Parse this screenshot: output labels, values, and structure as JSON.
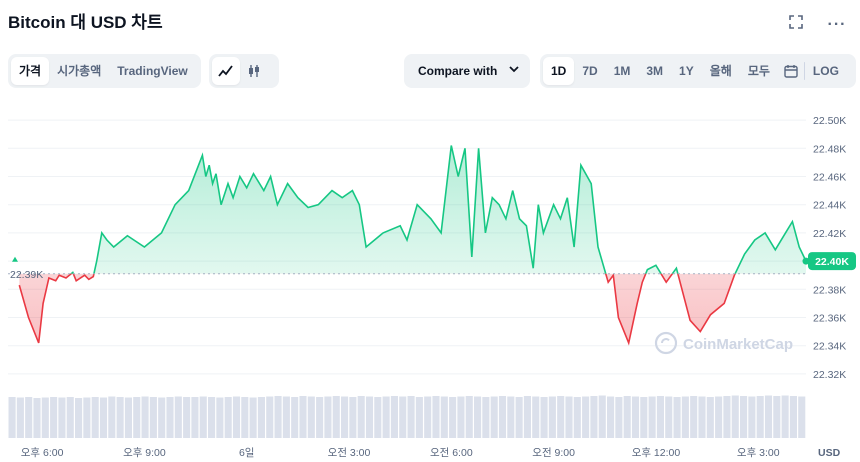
{
  "header": {
    "title": "Bitcoin 대 USD 차트"
  },
  "tabs": [
    "가격",
    "시가총액",
    "TradingView"
  ],
  "compare_label": "Compare with",
  "ranges": [
    "1D",
    "7D",
    "1M",
    "3M",
    "1Y",
    "올해",
    "모두"
  ],
  "log_label": "LOG",
  "watermark": "CoinMarketCap",
  "colors": {
    "up": "#16c784",
    "down": "#ea3943",
    "current_badge": "#16c784"
  },
  "chart_data": {
    "type": "area",
    "currency_label": "USD",
    "ylim": [
      22.31,
      22.51
    ],
    "y_ticks": [
      "22.32K",
      "22.34K",
      "22.36K",
      "22.38K",
      "22.40K",
      "22.42K",
      "22.44K",
      "22.46K",
      "22.48K",
      "22.50K"
    ],
    "y_tick_values": [
      22.32,
      22.34,
      22.36,
      22.38,
      22.4,
      22.42,
      22.44,
      22.46,
      22.48,
      22.5
    ],
    "baseline": {
      "value": 22.391,
      "label": "22.39K"
    },
    "current": {
      "value": 22.4,
      "label": "22.40K"
    },
    "x_ticks": [
      "오후 6:00",
      "오후 9:00",
      "6일",
      "오전 3:00",
      "오전 6:00",
      "오전 9:00",
      "오후 12:00",
      "오후 3:00"
    ],
    "x_tick_values": [
      1.0,
      4.0,
      7.0,
      10.0,
      13.0,
      16.0,
      19.0,
      22.0
    ],
    "xlim": [
      0.0,
      23.4
    ],
    "series": [
      {
        "unit": "K USD",
        "x": [
          0.33,
          0.6,
          0.9,
          1.03,
          1.2,
          1.4,
          1.5,
          1.7,
          1.9,
          2.0,
          2.25,
          2.37,
          2.5,
          2.6,
          2.75,
          2.9,
          3.1,
          3.5,
          4.0,
          4.5,
          4.9,
          5.3,
          5.7,
          5.8,
          5.9,
          6.0,
          6.1,
          6.25,
          6.45,
          6.6,
          6.8,
          7.0,
          7.2,
          7.5,
          7.7,
          7.9,
          8.2,
          8.5,
          8.8,
          9.1,
          9.5,
          9.8,
          10.1,
          10.3,
          10.5,
          11.0,
          11.5,
          11.7,
          12.0,
          12.4,
          12.7,
          13.0,
          13.2,
          13.4,
          13.6,
          13.8,
          14.0,
          14.2,
          14.4,
          14.6,
          14.8,
          15.0,
          15.2,
          15.4,
          15.55,
          15.7,
          16.0,
          16.2,
          16.4,
          16.6,
          16.8,
          17.1,
          17.3,
          17.6,
          17.75,
          17.9,
          18.2,
          18.45,
          18.6,
          18.75,
          19.0,
          19.3,
          19.6,
          20.0,
          20.3,
          20.6,
          21.0,
          21.3,
          21.6,
          21.9,
          22.2,
          22.5,
          22.8,
          23.0,
          23.2,
          23.4
        ],
        "y": [
          22.383,
          22.36,
          22.342,
          22.37,
          22.388,
          22.386,
          22.39,
          22.388,
          22.392,
          22.386,
          22.39,
          22.387,
          22.389,
          22.4,
          22.42,
          22.415,
          22.41,
          22.418,
          22.41,
          22.42,
          22.44,
          22.45,
          22.475,
          22.46,
          22.468,
          22.455,
          22.462,
          22.44,
          22.455,
          22.445,
          22.46,
          22.452,
          22.462,
          22.45,
          22.46,
          22.44,
          22.455,
          22.445,
          22.438,
          22.44,
          22.45,
          22.445,
          22.45,
          22.44,
          22.41,
          22.42,
          22.425,
          22.415,
          22.44,
          22.43,
          22.42,
          22.482,
          22.46,
          22.48,
          22.403,
          22.48,
          22.42,
          22.445,
          22.44,
          22.43,
          22.45,
          22.43,
          22.425,
          22.395,
          22.44,
          22.42,
          22.44,
          22.43,
          22.445,
          22.41,
          22.468,
          22.455,
          22.41,
          22.385,
          22.39,
          22.36,
          22.342,
          22.37,
          22.385,
          22.394,
          22.397,
          22.385,
          22.395,
          22.358,
          22.35,
          22.362,
          22.37,
          22.39,
          22.405,
          22.415,
          22.42,
          22.408,
          22.42,
          22.428,
          22.41,
          22.4
        ],
        "volume": [
          0.82,
          0.81,
          0.82,
          0.8,
          0.81,
          0.82,
          0.81,
          0.82,
          0.8,
          0.81,
          0.82,
          0.81,
          0.83,
          0.82,
          0.81,
          0.82,
          0.83,
          0.82,
          0.81,
          0.82,
          0.83,
          0.82,
          0.82,
          0.83,
          0.82,
          0.81,
          0.82,
          0.83,
          0.82,
          0.81,
          0.82,
          0.83,
          0.84,
          0.83,
          0.82,
          0.84,
          0.83,
          0.82,
          0.83,
          0.84,
          0.83,
          0.82,
          0.84,
          0.83,
          0.82,
          0.83,
          0.84,
          0.83,
          0.84,
          0.82,
          0.83,
          0.84,
          0.83,
          0.82,
          0.83,
          0.84,
          0.83,
          0.82,
          0.83,
          0.84,
          0.83,
          0.82,
          0.84,
          0.83,
          0.82,
          0.83,
          0.84,
          0.83,
          0.82,
          0.83,
          0.84,
          0.85,
          0.83,
          0.82,
          0.84,
          0.83,
          0.82,
          0.83,
          0.84,
          0.83,
          0.82,
          0.83,
          0.84,
          0.83,
          0.82,
          0.83,
          0.84,
          0.85,
          0.84,
          0.83,
          0.84,
          0.85,
          0.84,
          0.85,
          0.84,
          0.83
        ]
      }
    ]
  }
}
